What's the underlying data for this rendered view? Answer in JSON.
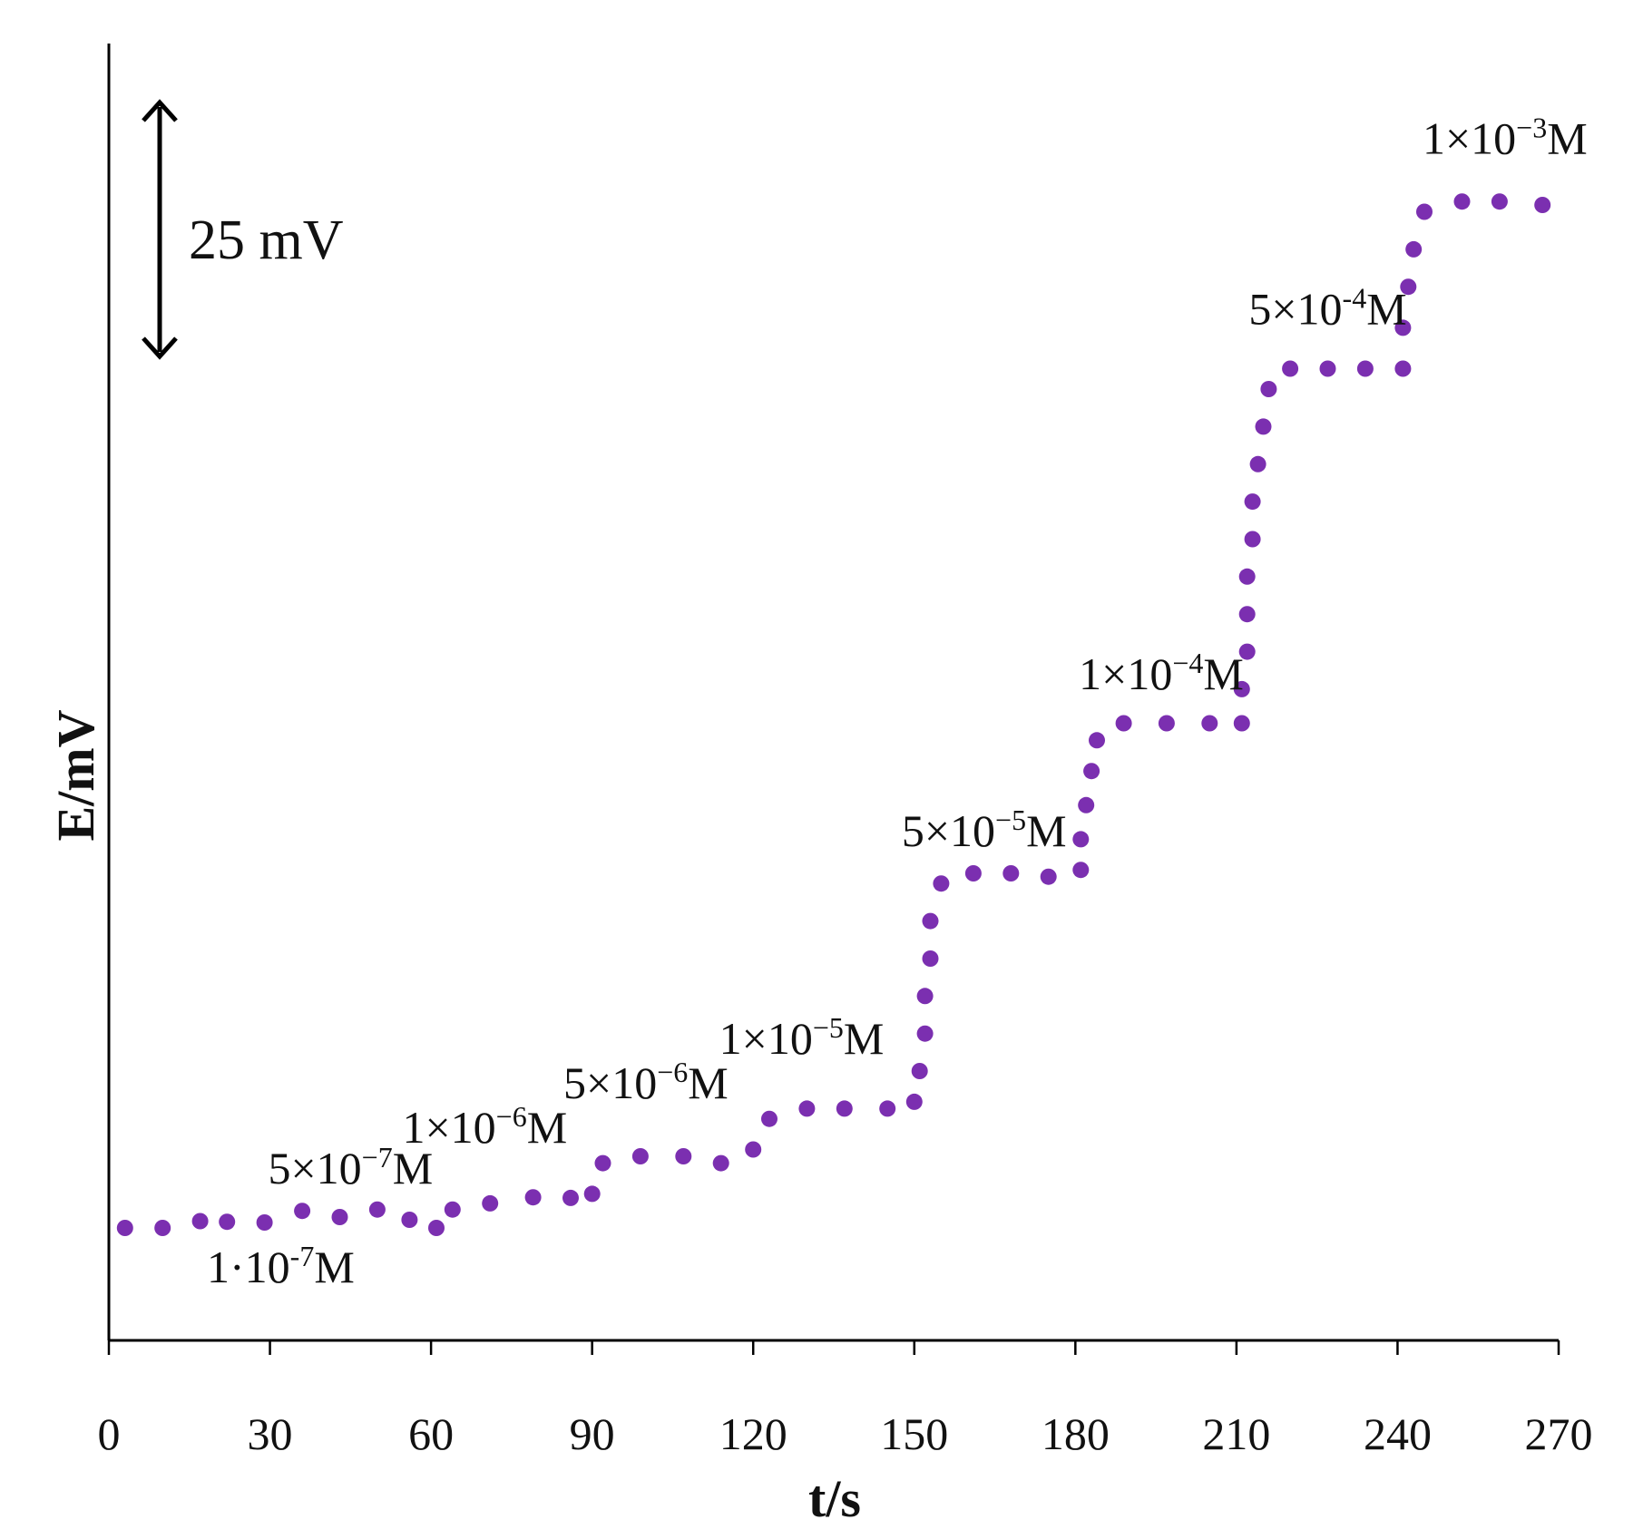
{
  "chart_data": {
    "type": "scatter",
    "xlabel": "t/s",
    "ylabel": "E/mV",
    "xlim": [
      0,
      270
    ],
    "xticks": [
      0,
      30,
      60,
      90,
      120,
      150,
      180,
      210,
      240,
      270
    ],
    "y_axis_ticks_shown": false,
    "scale_bar": {
      "label": "25 mV",
      "value_mV": 25
    },
    "marker_color": "#7B2FB0",
    "grid": false,
    "legend": "none",
    "series": [
      {
        "points": [
          [
            3,
            0.0
          ],
          [
            10,
            0.0
          ],
          [
            17,
            1.0
          ],
          [
            22,
            0.9
          ],
          [
            29,
            0.8
          ],
          [
            36,
            2.5
          ],
          [
            43,
            1.6
          ],
          [
            50,
            2.7
          ],
          [
            56,
            1.2
          ],
          [
            61,
            0.0
          ],
          [
            64,
            2.7
          ],
          [
            71,
            3.6
          ],
          [
            79,
            4.5
          ],
          [
            86,
            4.4
          ],
          [
            90,
            5.0
          ],
          [
            92,
            9.5
          ],
          [
            99,
            10.5
          ],
          [
            107,
            10.5
          ],
          [
            114,
            9.5
          ],
          [
            120,
            11.5
          ],
          [
            123,
            16.0
          ],
          [
            130,
            17.5
          ],
          [
            137,
            17.5
          ],
          [
            145,
            17.5
          ],
          [
            150,
            18.5
          ],
          [
            151,
            23.0
          ],
          [
            152,
            28.5
          ],
          [
            152,
            34.0
          ],
          [
            153,
            39.5
          ],
          [
            153,
            45.0
          ],
          [
            155,
            50.5
          ],
          [
            161,
            52.0
          ],
          [
            168,
            52.0
          ],
          [
            175,
            51.5
          ],
          [
            181,
            52.5
          ],
          [
            181,
            57.0
          ],
          [
            182,
            62.0
          ],
          [
            183,
            67.0
          ],
          [
            184,
            71.5
          ],
          [
            189,
            74.0
          ],
          [
            197,
            74.0
          ],
          [
            205,
            74.0
          ],
          [
            211,
            74.0
          ],
          [
            211,
            79.0
          ],
          [
            212,
            84.5
          ],
          [
            212,
            90.0
          ],
          [
            212,
            95.5
          ],
          [
            213,
            101.0
          ],
          [
            213,
            106.5
          ],
          [
            214,
            112.0
          ],
          [
            215,
            117.5
          ],
          [
            216,
            123.0
          ],
          [
            220,
            126.0
          ],
          [
            227,
            126.0
          ],
          [
            234,
            126.0
          ],
          [
            241,
            126.0
          ],
          [
            241,
            132.0
          ],
          [
            242,
            138.0
          ],
          [
            243,
            143.5
          ],
          [
            245,
            149.0
          ],
          [
            252,
            150.5
          ],
          [
            259,
            150.5
          ],
          [
            267,
            150.0
          ]
        ]
      }
    ],
    "annotations": [
      {
        "base": "1·10",
        "exp": "-7",
        "unit": "M",
        "x": 32,
        "y": -8.0
      },
      {
        "base": "5×10",
        "exp": "−7",
        "unit": "M",
        "x": 45,
        "y": 6.5
      },
      {
        "base": "1×10",
        "exp": "−6",
        "unit": "M",
        "x": 70,
        "y": 12.5
      },
      {
        "base": "5×10",
        "exp": "−6",
        "unit": "M",
        "x": 100,
        "y": 19.0
      },
      {
        "base": "1×10",
        "exp": "−5",
        "unit": "M",
        "x": 129,
        "y": 25.5
      },
      {
        "base": "5×10",
        "exp": "−5",
        "unit": "M",
        "x": 163,
        "y": 56.0
      },
      {
        "base": "1×10",
        "exp": "−4",
        "unit": "M",
        "x": 196,
        "y": 79.0
      },
      {
        "base": "5×10",
        "exp": "-4",
        "unit": "M",
        "x": 227,
        "y": 132.5
      },
      {
        "base": "1×10",
        "exp": "−3",
        "unit": "M",
        "x": 260,
        "y": 157.5
      }
    ]
  }
}
